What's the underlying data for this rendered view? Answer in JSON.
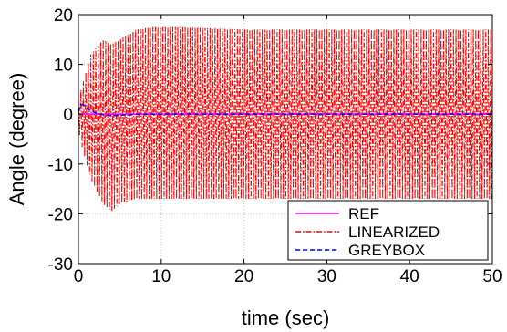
{
  "chart_data": {
    "type": "line",
    "xlabel": "time (sec)",
    "ylabel": "Angle (degree)",
    "xlim": [
      0,
      50
    ],
    "ylim": [
      -30,
      20
    ],
    "xticks": [
      0,
      10,
      20,
      30,
      40,
      50
    ],
    "yticks": [
      -30,
      -20,
      -10,
      0,
      10,
      20
    ],
    "grid": true,
    "legend_position": "bottom-right",
    "series": [
      {
        "name": "REF",
        "color": "#ff00ff",
        "style": "solid",
        "x": [
          0,
          50
        ],
        "y": [
          0,
          0
        ]
      },
      {
        "name": "LINEARIZED",
        "color": "#ff0000",
        "style": "dash-dot",
        "oscillation_period": 0.3,
        "envelope": {
          "t": [
            0,
            0.5,
            1.5,
            3,
            4,
            5,
            7,
            9,
            12,
            20,
            30,
            40,
            50
          ],
          "upper": [
            3,
            6,
            12,
            15,
            14,
            15,
            17,
            17.5,
            17.5,
            17,
            17,
            17,
            17
          ],
          "lower": [
            -3,
            -7,
            -13,
            -18,
            -19.5,
            -18,
            -17,
            -17,
            -17,
            -17,
            -17,
            -17,
            -17
          ]
        }
      },
      {
        "name": "GREYBOX",
        "color": "#0000ff",
        "style": "dashed",
        "x": [
          0,
          0.3,
          0.7,
          1.2,
          2,
          3,
          4,
          5,
          6,
          8,
          10,
          50
        ],
        "y": [
          0.5,
          2.0,
          1.8,
          1.0,
          0.3,
          -0.1,
          -0.3,
          -0.2,
          -0.1,
          0,
          0,
          0
        ]
      }
    ]
  }
}
